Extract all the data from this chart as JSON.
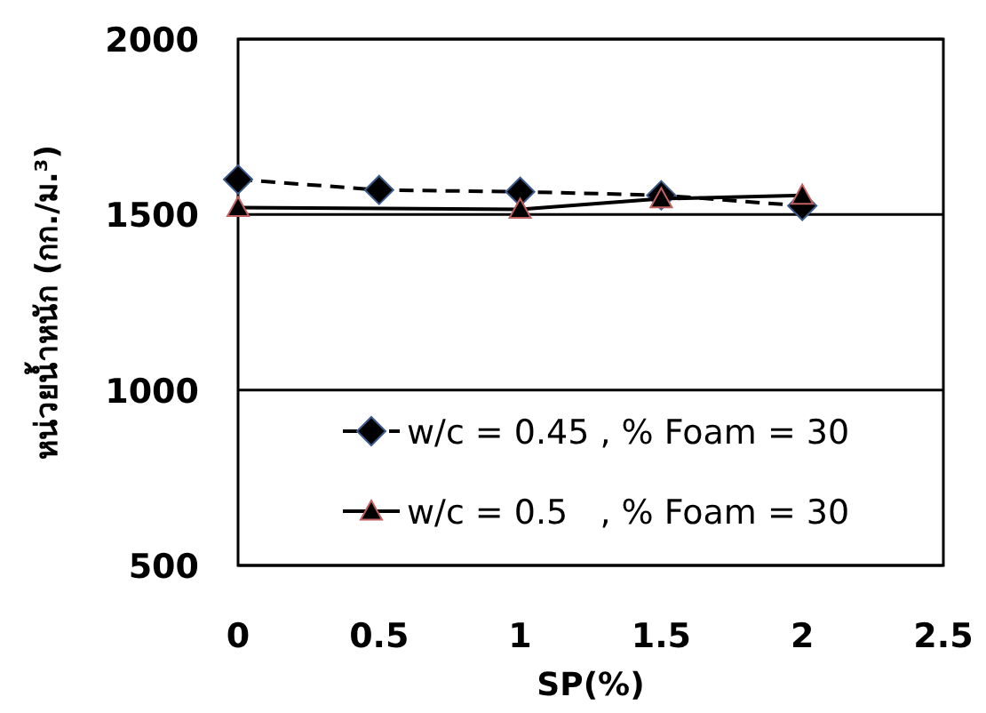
{
  "chart_data": {
    "type": "line",
    "xlabel": "SP(%)",
    "ylabel": "หน่วยน้ำหนัก (กก./ม.³)",
    "xlim": [
      0,
      2.5
    ],
    "ylim": [
      500,
      2000
    ],
    "xticks": [
      0,
      0.5,
      1,
      1.5,
      2,
      2.5
    ],
    "yticks": [
      500,
      1000,
      1500,
      2000
    ],
    "grid": "y",
    "legend": "bottom right",
    "series": [
      {
        "name": "w/c = 0.45 , % Foam = 30",
        "color": "#000000",
        "marker": "diamond",
        "line_style": "dashed",
        "x": [
          0,
          0.5,
          1,
          1.5,
          2
        ],
        "values": [
          1600,
          1570,
          1565,
          1555,
          1525
        ]
      },
      {
        "name": "w/c = 0.5   , % Foam = 30",
        "color": "#000000",
        "marker": "triangle",
        "line_style": "solid",
        "x": [
          0,
          1,
          1.5,
          2
        ],
        "values": [
          1520,
          1515,
          1545,
          1555
        ]
      }
    ]
  }
}
